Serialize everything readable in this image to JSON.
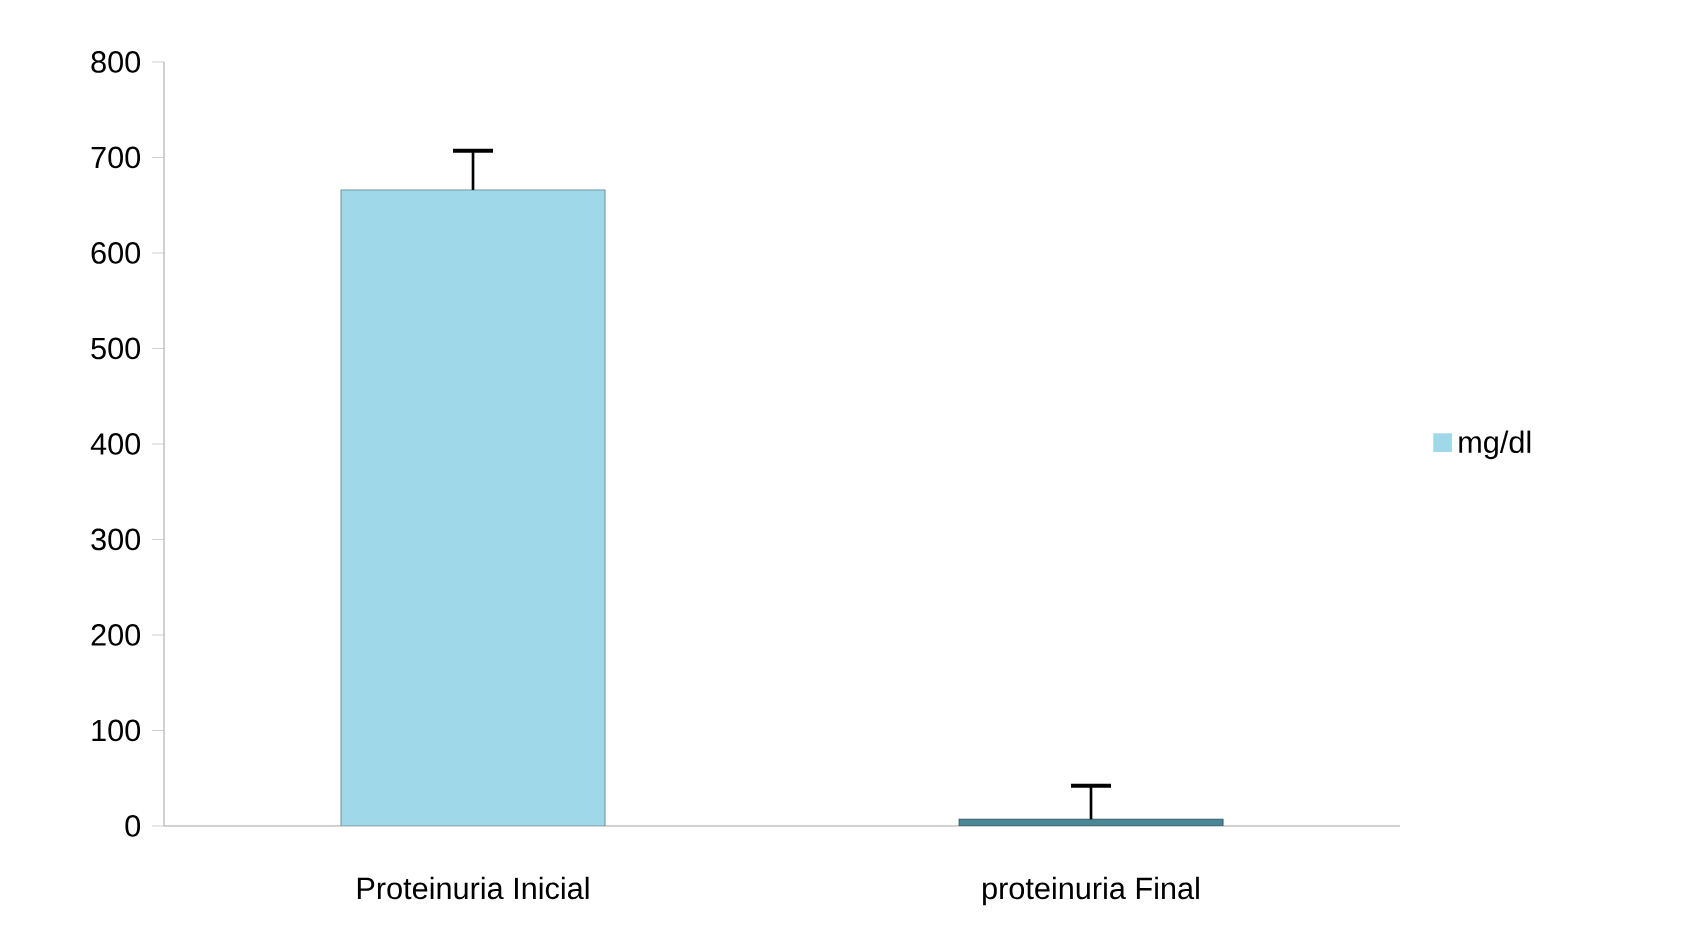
{
  "chart_data": {
    "type": "bar",
    "categories": [
      "Proteinuria Inicial",
      "proteinuria  Final"
    ],
    "series": [
      {
        "name": "mg/dl",
        "color": "#9fd8e8",
        "colors": [
          "#9fd8e8",
          "#4b8797"
        ],
        "values": [
          666,
          7
        ],
        "errors": [
          [
            666,
            707
          ],
          [
            7,
            42
          ]
        ]
      }
    ],
    "ylim": [
      0,
      800
    ],
    "yticks": [
      0,
      100,
      200,
      300,
      400,
      500,
      600,
      700,
      800
    ],
    "legend": "right",
    "grid": false
  }
}
